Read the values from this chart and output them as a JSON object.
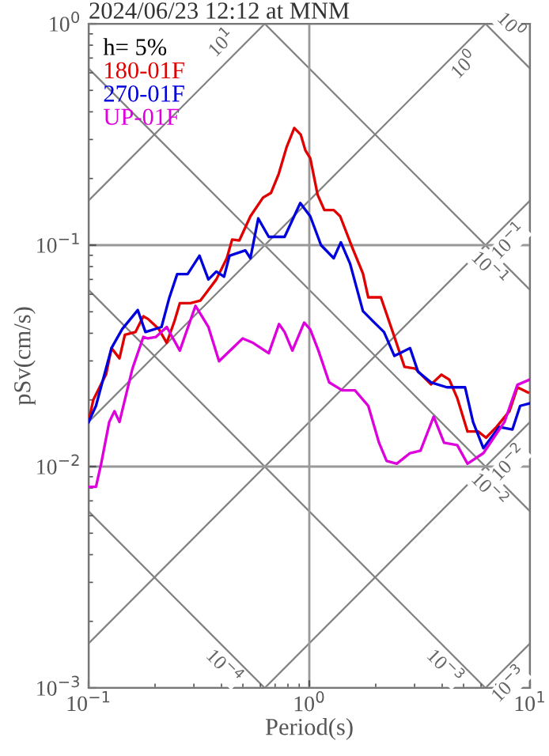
{
  "chart_data": {
    "type": "line",
    "title": "2024/06/23 12:12 at MNM",
    "xlabel": "Period(s)",
    "ylabel": "pSv(cm/s)",
    "legend_title": "h= 5%",
    "legend": "top left",
    "log": "xy",
    "grid": true,
    "xlim": [
      0.1,
      10
    ],
    "ylim": [
      0.001,
      1
    ],
    "xticks": [
      {
        "value": 0.1,
        "label": "10$^{−1}$"
      },
      {
        "value": 1,
        "label": "10$^{0}$"
      },
      {
        "value": 10,
        "label": "10$^{1}$"
      }
    ],
    "yticks": [
      {
        "value": 0.001,
        "label": "10$^{−3}$"
      },
      {
        "value": 0.01,
        "label": "10$^{−2}$"
      },
      {
        "value": 0.1,
        "label": "10$^{−1}$"
      },
      {
        "value": 1,
        "label": "10$^{0}$"
      }
    ],
    "series": [
      {
        "name": "180-01F",
        "color": "#e00000",
        "x": [
          0.1,
          0.105,
          0.12,
          0.127,
          0.138,
          0.146,
          0.163,
          0.177,
          0.186,
          0.208,
          0.226,
          0.245,
          0.259,
          0.289,
          0.321,
          0.379,
          0.423,
          0.447,
          0.482,
          0.541,
          0.617,
          0.67,
          0.727,
          0.789,
          0.855,
          0.914,
          0.96,
          1.01,
          1.09,
          1.17,
          1.29,
          1.38,
          1.57,
          1.75,
          1.85,
          2.11,
          2.43,
          2.7,
          3.02,
          3.56,
          3.97,
          4.31,
          4.68,
          5.21,
          5.82,
          6.32,
          7.05,
          8.07,
          8.77,
          9.79
        ],
        "values": [
          0.0159,
          0.02,
          0.0261,
          0.0343,
          0.0308,
          0.0394,
          0.0405,
          0.0477,
          0.0464,
          0.0418,
          0.0362,
          0.0454,
          0.0547,
          0.0547,
          0.0562,
          0.07,
          0.0873,
          0.106,
          0.105,
          0.135,
          0.164,
          0.172,
          0.21,
          0.277,
          0.338,
          0.316,
          0.268,
          0.247,
          0.169,
          0.144,
          0.144,
          0.135,
          0.0968,
          0.0744,
          0.0581,
          0.0581,
          0.0385,
          0.0282,
          0.0277,
          0.0235,
          0.026,
          0.0247,
          0.0204,
          0.0144,
          0.0144,
          0.0135,
          0.0151,
          0.0178,
          0.0228,
          0.0216
        ]
      },
      {
        "name": "270-01F",
        "color": "#0000dd",
        "x": [
          0.1,
          0.108,
          0.127,
          0.142,
          0.167,
          0.181,
          0.214,
          0.232,
          0.252,
          0.281,
          0.318,
          0.349,
          0.379,
          0.411,
          0.435,
          0.513,
          0.541,
          0.587,
          0.655,
          0.773,
          0.91,
          1.01,
          1.13,
          1.29,
          1.39,
          1.53,
          1.75,
          1.95,
          2.18,
          2.43,
          2.86,
          3.11,
          3.56,
          4.2,
          5.08,
          5.52,
          6.15,
          7.24,
          8.32,
          9.02,
          9.96
        ],
        "values": [
          0.0159,
          0.0188,
          0.0343,
          0.0418,
          0.0509,
          0.0405,
          0.0427,
          0.0578,
          0.074,
          0.074,
          0.0896,
          0.07,
          0.076,
          0.072,
          0.0896,
          0.0947,
          0.0873,
          0.132,
          0.109,
          0.109,
          0.155,
          0.135,
          0.1,
          0.0873,
          0.103,
          0.0825,
          0.0504,
          0.0452,
          0.0405,
          0.0316,
          0.0343,
          0.0268,
          0.024,
          0.0228,
          0.0228,
          0.0159,
          0.0121,
          0.0151,
          0.0147,
          0.0188,
          0.0193
        ]
      },
      {
        "name": "UP-01F",
        "color": "#dd00dd",
        "x": [
          0.1,
          0.108,
          0.114,
          0.124,
          0.131,
          0.138,
          0.158,
          0.177,
          0.186,
          0.202,
          0.226,
          0.259,
          0.305,
          0.349,
          0.39,
          0.499,
          0.556,
          0.655,
          0.729,
          0.773,
          0.838,
          0.948,
          1.01,
          1.1,
          1.23,
          1.41,
          1.61,
          1.85,
          2.07,
          2.24,
          2.49,
          2.86,
          3.19,
          3.66,
          4.08,
          4.68,
          5.21,
          6.15,
          7.66,
          8.77,
          9.96
        ],
        "values": [
          0.0081,
          0.0081,
          0.0103,
          0.0159,
          0.0178,
          0.0159,
          0.0277,
          0.0385,
          0.0379,
          0.0385,
          0.0427,
          0.0334,
          0.0532,
          0.0427,
          0.0299,
          0.0379,
          0.0362,
          0.0325,
          0.044,
          0.0405,
          0.0334,
          0.0447,
          0.0416,
          0.0334,
          0.024,
          0.0221,
          0.0221,
          0.0188,
          0.0128,
          0.0106,
          0.0103,
          0.0115,
          0.0118,
          0.0168,
          0.0128,
          0.0125,
          0.0103,
          0.0115,
          0.0159,
          0.0234,
          0.0247
        ]
      },
      {
        "color": "#808080",
        "x": [
          0.1,
          0.628
        ],
        "values": [
          0.159,
          1
        ]
      },
      {
        "color": "#808080",
        "x": [
          0.1,
          6.28
        ],
        "values": [
          0.0159,
          1
        ]
      },
      {
        "color": "#808080",
        "x": [
          0.1,
          10
        ],
        "values": [
          0.00159,
          0.159
        ]
      },
      {
        "color": "#808080",
        "x": [
          0.628,
          10
        ],
        "values": [
          0.001,
          0.0159
        ]
      },
      {
        "color": "#808080",
        "x": [
          6.28,
          10
        ],
        "values": [
          0.001,
          0.00159
        ]
      },
      {
        "color": "#808080",
        "x": [
          6.28,
          10
        ],
        "values": [
          1,
          0.628
        ]
      },
      {
        "color": "#808080",
        "x": [
          0.628,
          10
        ],
        "values": [
          1,
          0.0628
        ]
      },
      {
        "color": "#808080",
        "x": [
          0.1,
          10
        ],
        "values": [
          0.628,
          0.00628
        ]
      },
      {
        "color": "#808080",
        "x": [
          0.1,
          6.28
        ],
        "values": [
          0.0628,
          0.001
        ]
      },
      {
        "color": "#808080",
        "x": [
          0.1,
          0.628
        ],
        "values": [
          0.00628,
          0.001
        ]
      }
    ],
    "annotations": [
      "10$^{1}$",
      "10$^{0}$",
      "10$^{−1}$",
      "10$^{−2}$",
      "10$^{−3}$",
      "10$^{0}$",
      "10$^{−1}$",
      "10$^{−2}$",
      "10$^{−3}$",
      "10$^{−4}$"
    ]
  }
}
